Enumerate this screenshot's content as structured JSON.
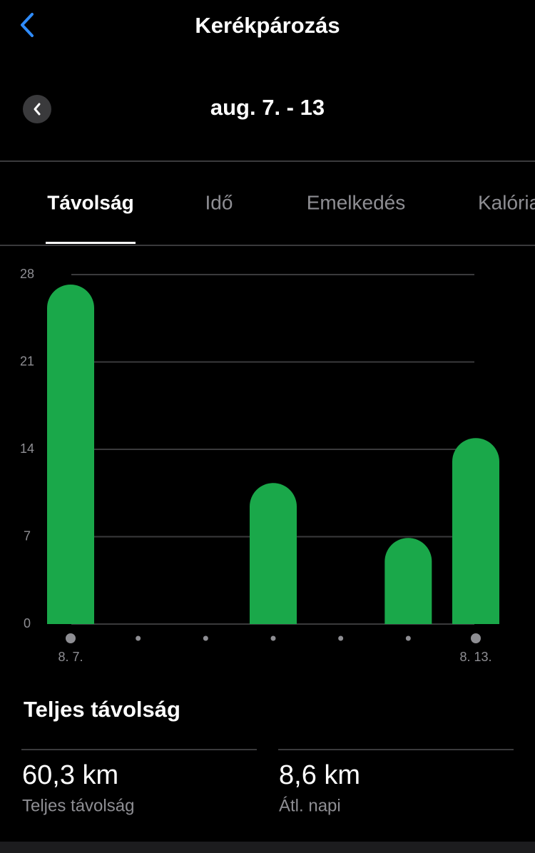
{
  "header": {
    "title": "Kerékpározás",
    "date_range": "aug. 7. - 13"
  },
  "tabs": [
    "Távolság",
    "Idő",
    "Emelkedés",
    "Kalória"
  ],
  "chart_data": {
    "type": "bar",
    "categories": [
      "8. 7.",
      null,
      null,
      null,
      null,
      null,
      "8. 13."
    ],
    "values": [
      27.2,
      0,
      0,
      11.3,
      0,
      6.9,
      14.9
    ],
    "color": "#1aa84a",
    "ylim": [
      0,
      28
    ],
    "yticks": [
      0,
      7,
      14,
      21,
      28
    ],
    "grid": true
  },
  "summary": {
    "title": "Teljes távolság",
    "stats": [
      {
        "value": "60,3 km",
        "label": "Teljes távolság"
      },
      {
        "value": "8,6 km",
        "label": "Átl. napi"
      }
    ]
  }
}
